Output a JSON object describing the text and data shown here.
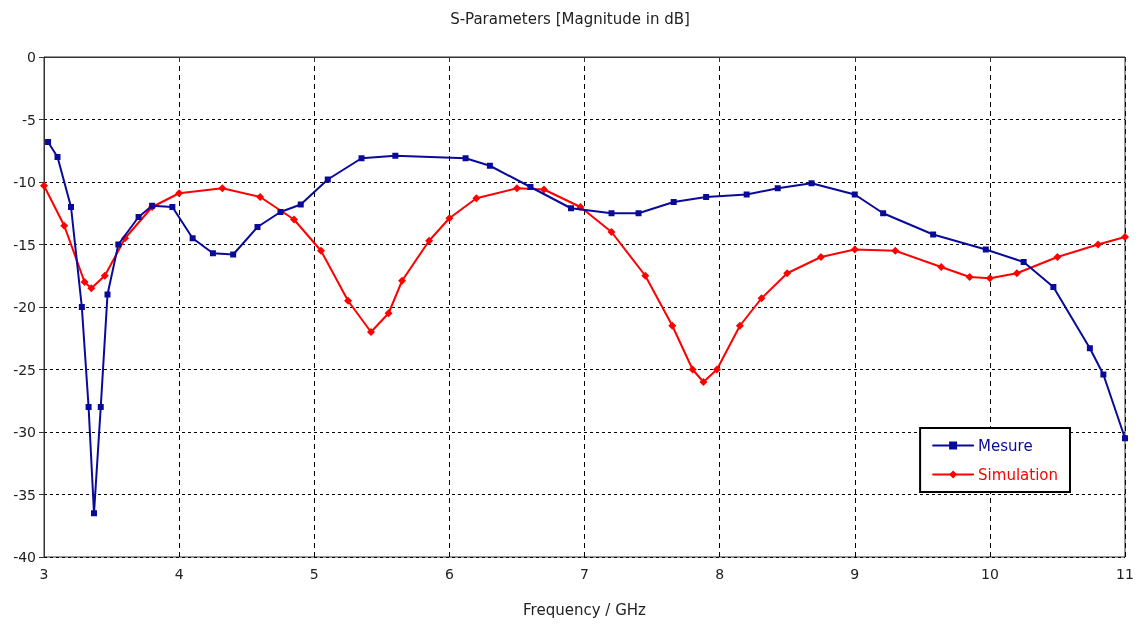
{
  "chart_data": {
    "type": "line",
    "title": "S-Parameters [Magnitude in dB]",
    "xlabel": "Frequency / GHz",
    "xlim": [
      3,
      11
    ],
    "xticks": [
      3,
      4,
      5,
      6,
      7,
      8,
      9,
      10,
      11
    ],
    "ylim": [
      -40,
      0
    ],
    "yticks": [
      -40,
      -35,
      -30,
      -25,
      -20,
      -15,
      -10,
      -5,
      0
    ],
    "grid": true,
    "legend": "bottom right",
    "line_style": "solid",
    "series": [
      {
        "name": "Mesure",
        "color": "#0a0a9a",
        "marker": "square",
        "x": [
          3.03,
          3.1,
          3.2,
          3.28,
          3.33,
          3.37,
          3.42,
          3.47,
          3.55,
          3.7,
          3.8,
          3.95,
          4.1,
          4.25,
          4.4,
          4.58,
          4.75,
          4.9,
          5.1,
          5.35,
          5.6,
          6.12,
          6.3,
          6.6,
          6.9,
          7.2,
          7.4,
          7.66,
          7.9,
          8.2,
          8.43,
          8.68,
          9.0,
          9.21,
          9.58,
          9.97,
          10.25,
          10.47,
          10.74,
          10.84,
          11.0
        ],
        "values": [
          -6.8,
          -8,
          -12,
          -20,
          -28,
          -36.5,
          -28,
          -19,
          -15,
          -12.8,
          -11.9,
          -12,
          -14.5,
          -15.7,
          -15.8,
          -13.6,
          -12.4,
          -11.8,
          -9.8,
          -8.1,
          -7.9,
          -8.1,
          -8.7,
          -10.4,
          -12.1,
          -12.5,
          -12.5,
          -11.6,
          -11.2,
          -11,
          -10.5,
          -10.1,
          -11,
          -12.5,
          -14.2,
          -15.4,
          -16.4,
          -18.4,
          -23.3,
          -25.4,
          -30.5
        ]
      },
      {
        "name": "Simulation",
        "color": "#ff0000",
        "marker": "diamond",
        "x": [
          3.0,
          3.15,
          3.3,
          3.35,
          3.45,
          3.6,
          3.8,
          4.0,
          4.32,
          4.6,
          4.85,
          5.05,
          5.25,
          5.42,
          5.55,
          5.65,
          5.85,
          6.0,
          6.2,
          6.5,
          6.7,
          6.97,
          7.2,
          7.45,
          7.65,
          7.8,
          7.88,
          7.98,
          8.15,
          8.31,
          8.5,
          8.75,
          9.0,
          9.3,
          9.64,
          9.85,
          10.0,
          10.2,
          10.5,
          10.8,
          11.0
        ],
        "values": [
          -10.3,
          -13.5,
          -18,
          -18.5,
          -17.5,
          -14.5,
          -12,
          -10.9,
          -10.5,
          -11.2,
          -13,
          -15.5,
          -19.5,
          -22,
          -20.5,
          -17.9,
          -14.7,
          -12.9,
          -11.3,
          -10.5,
          -10.6,
          -12,
          -14,
          -17.5,
          -21.5,
          -25,
          -26,
          -25,
          -21.5,
          -19.3,
          -17.3,
          -16,
          -15.4,
          -15.5,
          -16.8,
          -17.6,
          -17.7,
          -17.3,
          -16,
          -15,
          -14.4
        ]
      }
    ]
  }
}
